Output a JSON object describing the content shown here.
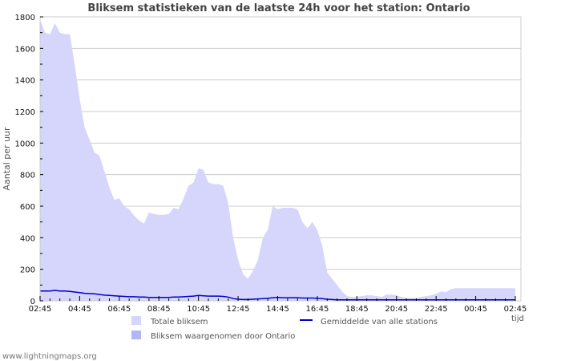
{
  "title": "Bliksem statistieken van de laatste 24h voor het station: Ontario",
  "footer": "www.lightningmaps.org",
  "colors": {
    "total": "#d6d6fc",
    "station": "#b4b4f8",
    "average": "#0000cc",
    "grid": "#cccccc",
    "frame": "#cccccc"
  },
  "legend": [
    {
      "label": "Totale bliksem",
      "type": "area",
      "color": "#d6d6fc"
    },
    {
      "label": "Bliksem waargenomen door Ontario",
      "type": "area",
      "color": "#b4b4f8"
    },
    {
      "label": "Gemiddelde van alle stations",
      "type": "line",
      "color": "#0000cc"
    }
  ],
  "chart_data": {
    "type": "area",
    "title": "Bliksem statistieken van de laatste 24h voor het station: Ontario",
    "xlabel": "tijd",
    "ylabel": "Aantal per uur",
    "ylim": [
      0,
      1800
    ],
    "yticks": [
      0,
      200,
      400,
      600,
      800,
      1000,
      1200,
      1400,
      1600,
      1800
    ],
    "xticks": [
      "02:45",
      "04:45",
      "06:45",
      "08:45",
      "10:45",
      "12:45",
      "14:45",
      "16:45",
      "18:45",
      "20:45",
      "22:45",
      "00:45",
      "02:45"
    ],
    "grid": true,
    "legend_position": "bottom",
    "x_hours": [
      0,
      0.25,
      0.5,
      0.75,
      1,
      1.25,
      1.5,
      1.75,
      2,
      2.25,
      2.5,
      2.75,
      3,
      3.25,
      3.5,
      3.75,
      4,
      4.25,
      4.5,
      4.75,
      5,
      5.25,
      5.5,
      5.75,
      6,
      6.25,
      6.5,
      6.75,
      7,
      7.25,
      7.5,
      7.75,
      8,
      8.25,
      8.5,
      8.75,
      9,
      9.25,
      9.5,
      9.75,
      10,
      10.25,
      10.5,
      10.75,
      11,
      11.25,
      11.5,
      11.75,
      12,
      12.25,
      12.5,
      12.75,
      13,
      13.25,
      13.5,
      13.75,
      14,
      14.25,
      14.5,
      14.75,
      15,
      15.25,
      15.5,
      15.75,
      16,
      16.25,
      16.5,
      16.75,
      17,
      17.25,
      17.5,
      17.75,
      18,
      18.25,
      18.5,
      18.75,
      19,
      19.25,
      19.5,
      19.75,
      20,
      20.25,
      20.5,
      20.75,
      21,
      21.25,
      21.5,
      21.75,
      22,
      22.25,
      22.5,
      22.75,
      23,
      23.25,
      23.5,
      23.75,
      24
    ],
    "series": [
      {
        "name": "Totale bliksem",
        "values": [
          1780,
          1700,
          1690,
          1760,
          1700,
          1690,
          1690,
          1500,
          1280,
          1100,
          1020,
          940,
          920,
          820,
          720,
          640,
          650,
          600,
          580,
          540,
          510,
          490,
          560,
          550,
          545,
          545,
          550,
          590,
          580,
          650,
          730,
          750,
          840,
          830,
          750,
          740,
          740,
          730,
          620,
          400,
          260,
          170,
          140,
          190,
          260,
          400,
          450,
          600,
          580,
          590,
          590,
          590,
          580,
          500,
          460,
          500,
          450,
          350,
          180,
          140,
          100,
          60,
          30,
          25,
          25,
          30,
          35,
          35,
          30,
          25,
          40,
          40,
          35,
          25,
          20,
          20,
          20,
          25,
          30,
          35,
          45,
          60,
          55,
          75,
          80,
          80,
          80,
          80,
          80,
          80,
          80,
          80,
          80,
          80,
          80,
          80,
          80
        ],
        "color": "#d6d6fc"
      },
      {
        "name": "Gemiddelde van alle stations",
        "values": [
          62,
          62,
          62,
          66,
          62,
          62,
          60,
          56,
          52,
          48,
          46,
          44,
          40,
          36,
          34,
          32,
          30,
          28,
          26,
          26,
          24,
          24,
          22,
          22,
          22,
          22,
          22,
          24,
          24,
          26,
          28,
          30,
          34,
          32,
          30,
          30,
          30,
          28,
          24,
          14,
          10,
          8,
          8,
          10,
          12,
          14,
          16,
          20,
          22,
          20,
          20,
          20,
          20,
          18,
          18,
          18,
          16,
          14,
          10,
          8,
          6,
          6,
          6,
          6,
          6,
          6,
          6,
          6,
          6,
          6,
          6,
          6,
          6,
          6,
          6,
          6,
          6,
          6,
          6,
          6,
          6,
          6,
          6,
          6,
          6,
          6,
          6,
          6,
          6,
          6,
          6,
          6,
          6,
          6,
          6,
          6,
          6
        ],
        "color": "#0000cc"
      }
    ]
  }
}
